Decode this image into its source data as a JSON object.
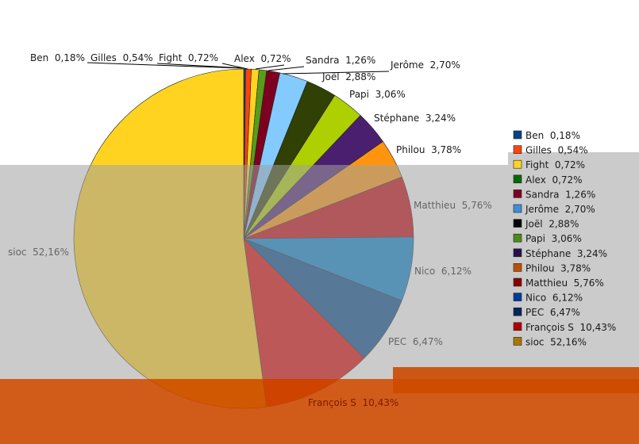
{
  "chart_data": {
    "type": "pie",
    "title": "",
    "start_angle_deg": 0,
    "direction": "clockwise",
    "legend_position": "right",
    "slices": [
      {
        "name": "Ben",
        "value": 0.18,
        "label": "Ben  0,18%",
        "color": "#004586"
      },
      {
        "name": "Gilles",
        "value": 0.54,
        "label": "Gilles  0,54%",
        "color": "#ff420e"
      },
      {
        "name": "Fight",
        "value": 0.72,
        "label": "Fight  0,72%",
        "color": "#ffd320"
      },
      {
        "name": "Alex",
        "value": 0.72,
        "label": "Alex  0,72%",
        "color": "#579d1c"
      },
      {
        "name": "Sandra",
        "value": 1.26,
        "label": "Sandra  1,26%",
        "color": "#7e0021"
      },
      {
        "name": "Jerôme",
        "value": 2.7,
        "label": "Jerôme  2,70%",
        "color": "#83caff"
      },
      {
        "name": "Joël",
        "value": 2.88,
        "label": "Joël  2,88%",
        "color": "#314004"
      },
      {
        "name": "Papi",
        "value": 3.06,
        "label": "Papi  3,06%",
        "color": "#aecf00"
      },
      {
        "name": "Stéphane",
        "value": 3.24,
        "label": "Stéphane  3,24%",
        "color": "#4b1f6f"
      },
      {
        "name": "Philou",
        "value": 3.78,
        "label": "Philou  3,78%",
        "color": "#ff950e"
      },
      {
        "name": "Matthieu",
        "value": 5.76,
        "label": "Matthieu  5,76%",
        "color": "#c5000b"
      },
      {
        "name": "Nico",
        "value": 6.12,
        "label": "Nico  6,12%",
        "color": "#0084d1"
      },
      {
        "name": "PEC",
        "value": 6.47,
        "label": "PEC  6,47%",
        "color": "#00488c"
      },
      {
        "name": "François S",
        "value": 10.43,
        "label": "François S  10,43%",
        "color": "#e00000"
      },
      {
        "name": "sioc",
        "value": 52.16,
        "label": "sioc  52,16%",
        "color": "#ffd320"
      }
    ],
    "legend": [
      {
        "label": "Ben  0,18%",
        "color": "#004586"
      },
      {
        "label": "Gilles  0,54%",
        "color": "#ff420e"
      },
      {
        "label": "Fight  0,72%",
        "color": "#ffd320"
      },
      {
        "label": "Alex  0,72%",
        "color": "#006a00"
      },
      {
        "label": "Sandra  1,26%",
        "color": "#7e0021"
      },
      {
        "label": "Jerôme  2,70%",
        "color": "#3e8fd6"
      },
      {
        "label": "Joël  2,88%",
        "color": "#000000"
      },
      {
        "label": "Papi  3,06%",
        "color": "#4d8a1c"
      },
      {
        "label": "Stéphane  3,24%",
        "color": "#2a0f4a"
      },
      {
        "label": "Philou  3,78%",
        "color": "#c05000"
      },
      {
        "label": "Matthieu  5,76%",
        "color": "#8a0000"
      },
      {
        "label": "Nico  6,12%",
        "color": "#003a9a"
      },
      {
        "label": "PEC  6,47%",
        "color": "#00265a"
      },
      {
        "label": "François S  10,43%",
        "color": "#b00000"
      },
      {
        "label": "sioc  52,16%",
        "color": "#a87800"
      }
    ]
  },
  "overlay": {
    "gray_band_color": "#a0a0a0",
    "orange_band_color": "#cc4a00"
  }
}
